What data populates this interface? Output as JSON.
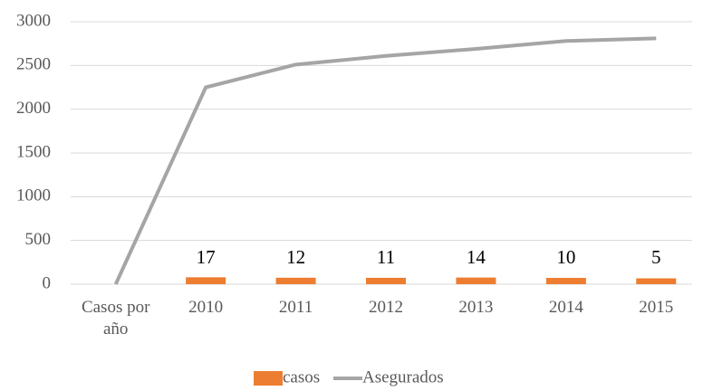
{
  "chart_data": {
    "type": "bar",
    "categories": [
      "Casos por año",
      "2010",
      "2011",
      "2012",
      "2013",
      "2014",
      "2015"
    ],
    "series": [
      {
        "name": "casos",
        "type": "bar",
        "color": "#ed7d31",
        "values": [
          null,
          17,
          12,
          11,
          14,
          10,
          5
        ]
      },
      {
        "name": "Asegurados",
        "type": "line",
        "color": "#a5a5a5",
        "values": [
          0,
          2250,
          2510,
          2610,
          2690,
          2780,
          2810
        ]
      }
    ],
    "ylim": [
      0,
      3000
    ],
    "yticks": [
      0,
      500,
      1000,
      1500,
      2000,
      2500,
      3000
    ],
    "grid": true,
    "legend": "bottom"
  }
}
